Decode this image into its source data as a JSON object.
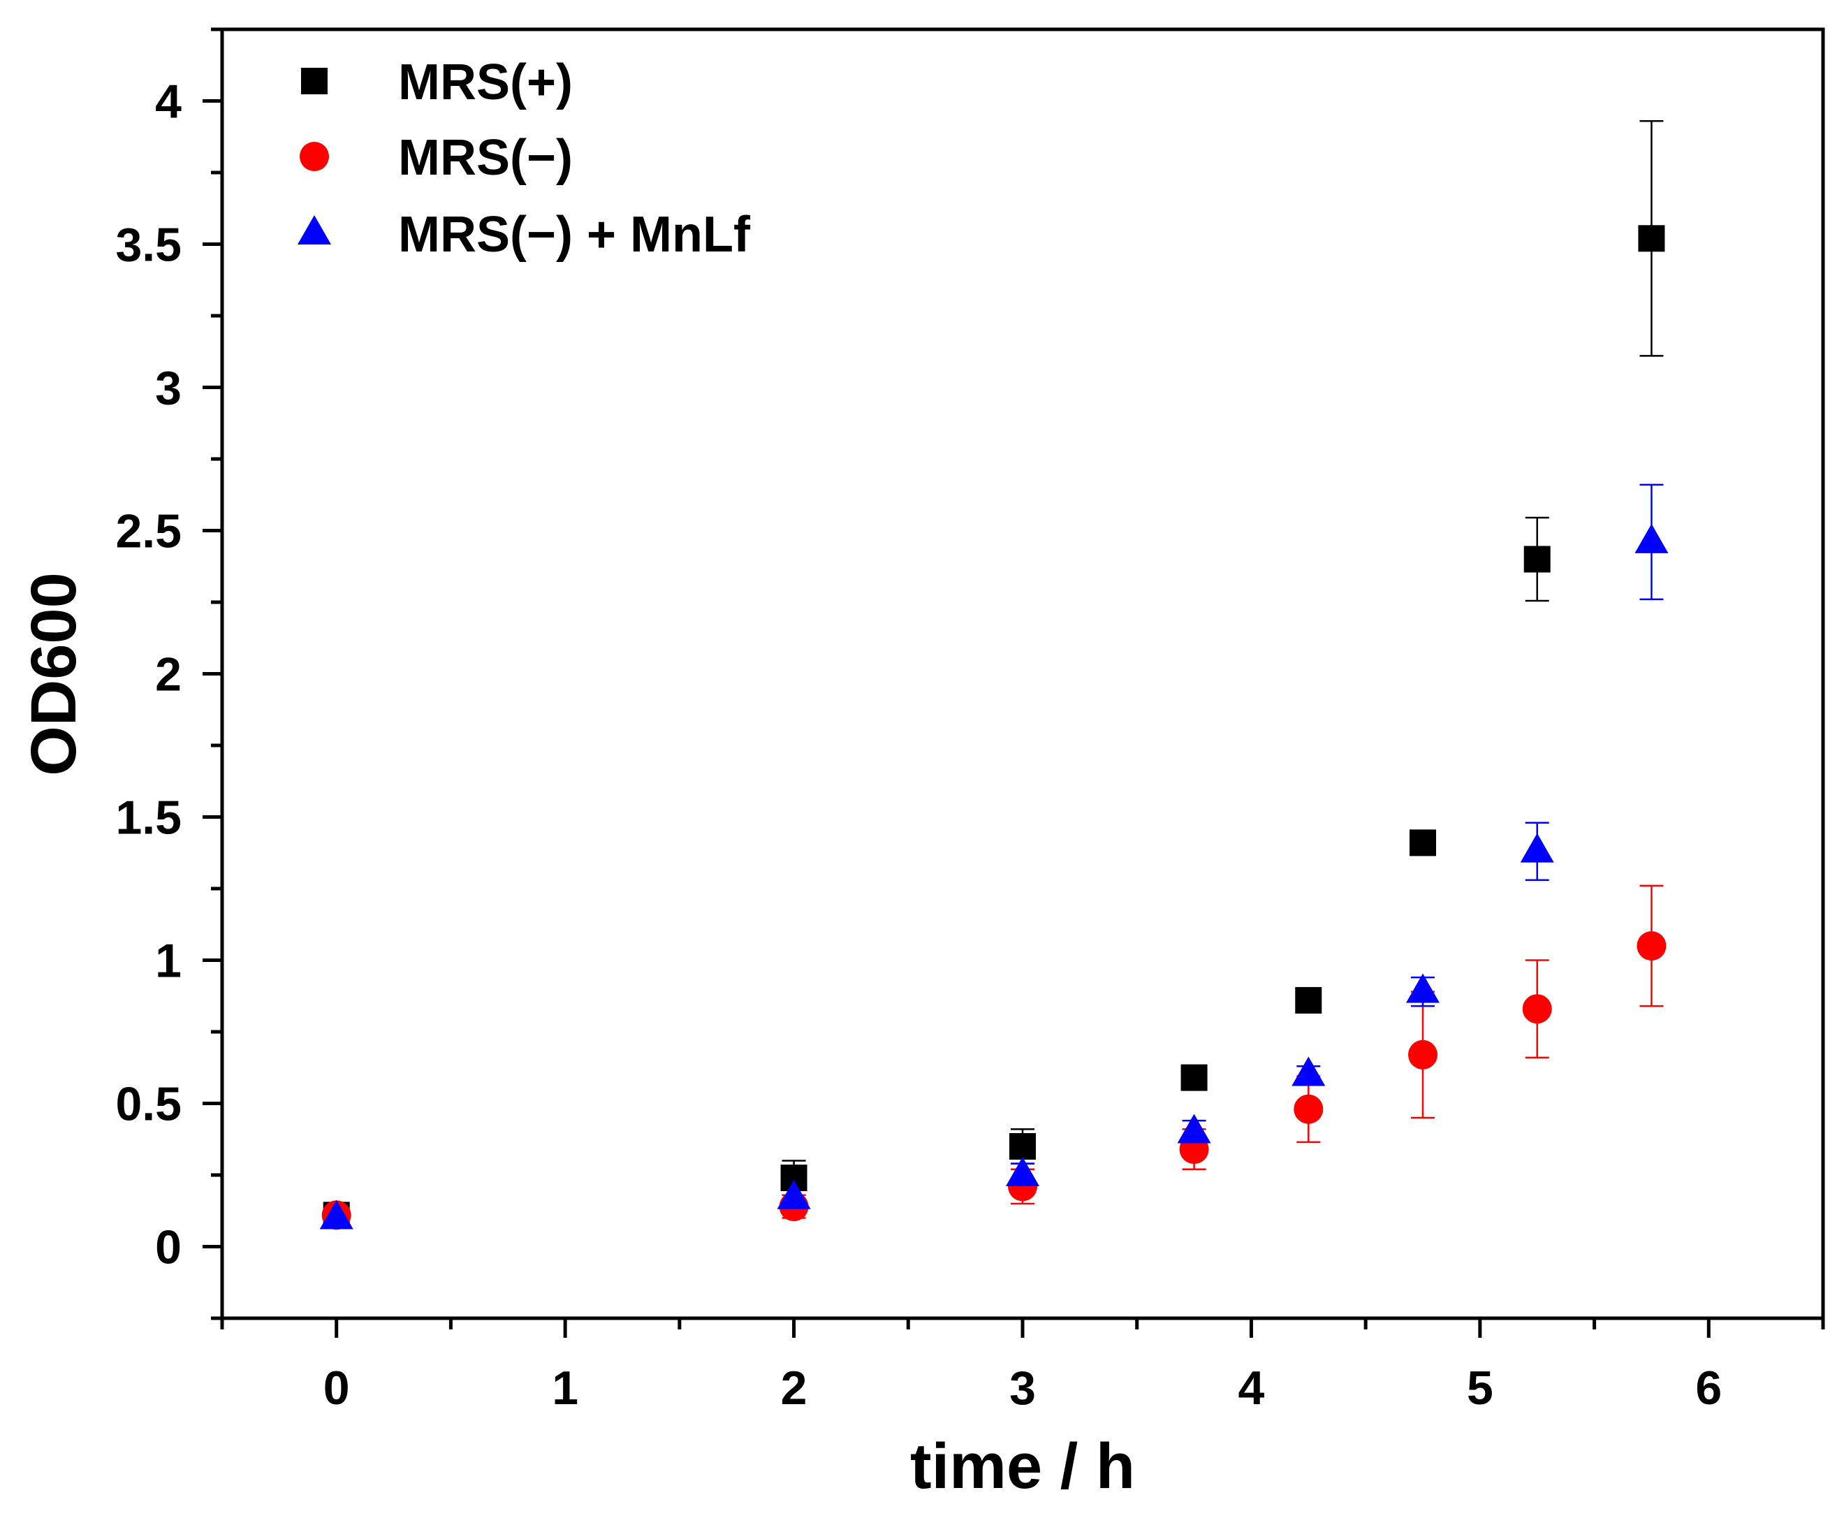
{
  "chart_data": {
    "type": "scatter",
    "title": "",
    "xlabel": "time / h",
    "ylabel": "OD600",
    "xlim": [
      -0.5,
      6.5
    ],
    "ylim": [
      -0.25,
      4.25
    ],
    "xticks": [
      0,
      1,
      2,
      3,
      4,
      5,
      6
    ],
    "xtick_labels": [
      "0",
      "1",
      "2",
      "3",
      "4",
      "5",
      "6"
    ],
    "yticks": [
      0,
      0.5,
      1,
      1.5,
      2,
      2.5,
      3,
      3.5,
      4
    ],
    "ytick_labels": [
      "0",
      "0.5",
      "1",
      "1.5",
      "2",
      "2.5",
      "3",
      "3.5",
      "4"
    ],
    "grid": false,
    "legend_position": "top-left",
    "series": [
      {
        "name": "MRS(+)",
        "marker": "square",
        "color": "#000000",
        "points": [
          {
            "x": 0,
            "y": 0.11,
            "err": 0.02
          },
          {
            "x": 2,
            "y": 0.24,
            "err": 0.06
          },
          {
            "x": 3,
            "y": 0.35,
            "err": 0.06
          },
          {
            "x": 3.75,
            "y": 0.59,
            "err": 0.02
          },
          {
            "x": 4.25,
            "y": 0.86,
            "err": 0.02
          },
          {
            "x": 4.75,
            "y": 1.41,
            "err": 0.02
          },
          {
            "x": 5.25,
            "y": 2.4,
            "err": 0.145
          },
          {
            "x": 5.75,
            "y": 3.52,
            "err": 0.41
          }
        ]
      },
      {
        "name": "MRS(−)",
        "marker": "circle",
        "color": "#ff0000",
        "points": [
          {
            "x": 0,
            "y": 0.11,
            "err": 0.02
          },
          {
            "x": 2,
            "y": 0.14,
            "err": 0.04
          },
          {
            "x": 3,
            "y": 0.21,
            "err": 0.06
          },
          {
            "x": 3.75,
            "y": 0.34,
            "err": 0.07
          },
          {
            "x": 4.25,
            "y": 0.48,
            "err": 0.115
          },
          {
            "x": 4.75,
            "y": 0.67,
            "err": 0.22
          },
          {
            "x": 5.25,
            "y": 0.83,
            "err": 0.17
          },
          {
            "x": 5.75,
            "y": 1.05,
            "err": 0.21
          }
        ]
      },
      {
        "name": "MRS(−) + MnLf",
        "marker": "triangle",
        "color": "#0000ff",
        "points": [
          {
            "x": 0,
            "y": 0.1,
            "err": 0.02
          },
          {
            "x": 2,
            "y": 0.17,
            "err": 0.04
          },
          {
            "x": 3,
            "y": 0.25,
            "err": 0.04
          },
          {
            "x": 3.75,
            "y": 0.4,
            "err": 0.04
          },
          {
            "x": 4.25,
            "y": 0.6,
            "err": 0.03
          },
          {
            "x": 4.75,
            "y": 0.89,
            "err": 0.05
          },
          {
            "x": 5.25,
            "y": 1.38,
            "err": 0.1
          },
          {
            "x": 5.75,
            "y": 2.46,
            "err": 0.2
          }
        ]
      }
    ]
  }
}
